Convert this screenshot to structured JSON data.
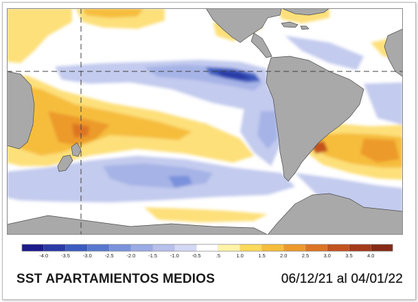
{
  "caption": {
    "title": "SST APARTAMIENTOS MEDIOS",
    "date_range": "06/12/21 al 04/01/22"
  },
  "legend": {
    "ticks": [
      "-4.0",
      "-3.5",
      "-3.0",
      "-2.5",
      "-2.0",
      "-1.5",
      "-1.0",
      "-0.5",
      ".5",
      "1.0",
      "1.5",
      "2.0",
      "2.5",
      "3.0",
      "3.5",
      "4.0"
    ],
    "colors": [
      "#1b1b8c",
      "#2a3aa6",
      "#3c5bbf",
      "#5877cf",
      "#7a92dc",
      "#9aaae4",
      "#b7c0ec",
      "#d3d9f4",
      "#ffffff",
      "#fff3a8",
      "#fdda5a",
      "#f6bd3c",
      "#ec9a2c",
      "#dd7424",
      "#c2521e",
      "#a43a1a",
      "#862a16"
    ]
  },
  "map": {
    "land_color": "#a9a9a9",
    "ocean_color": "#ffffff"
  }
}
